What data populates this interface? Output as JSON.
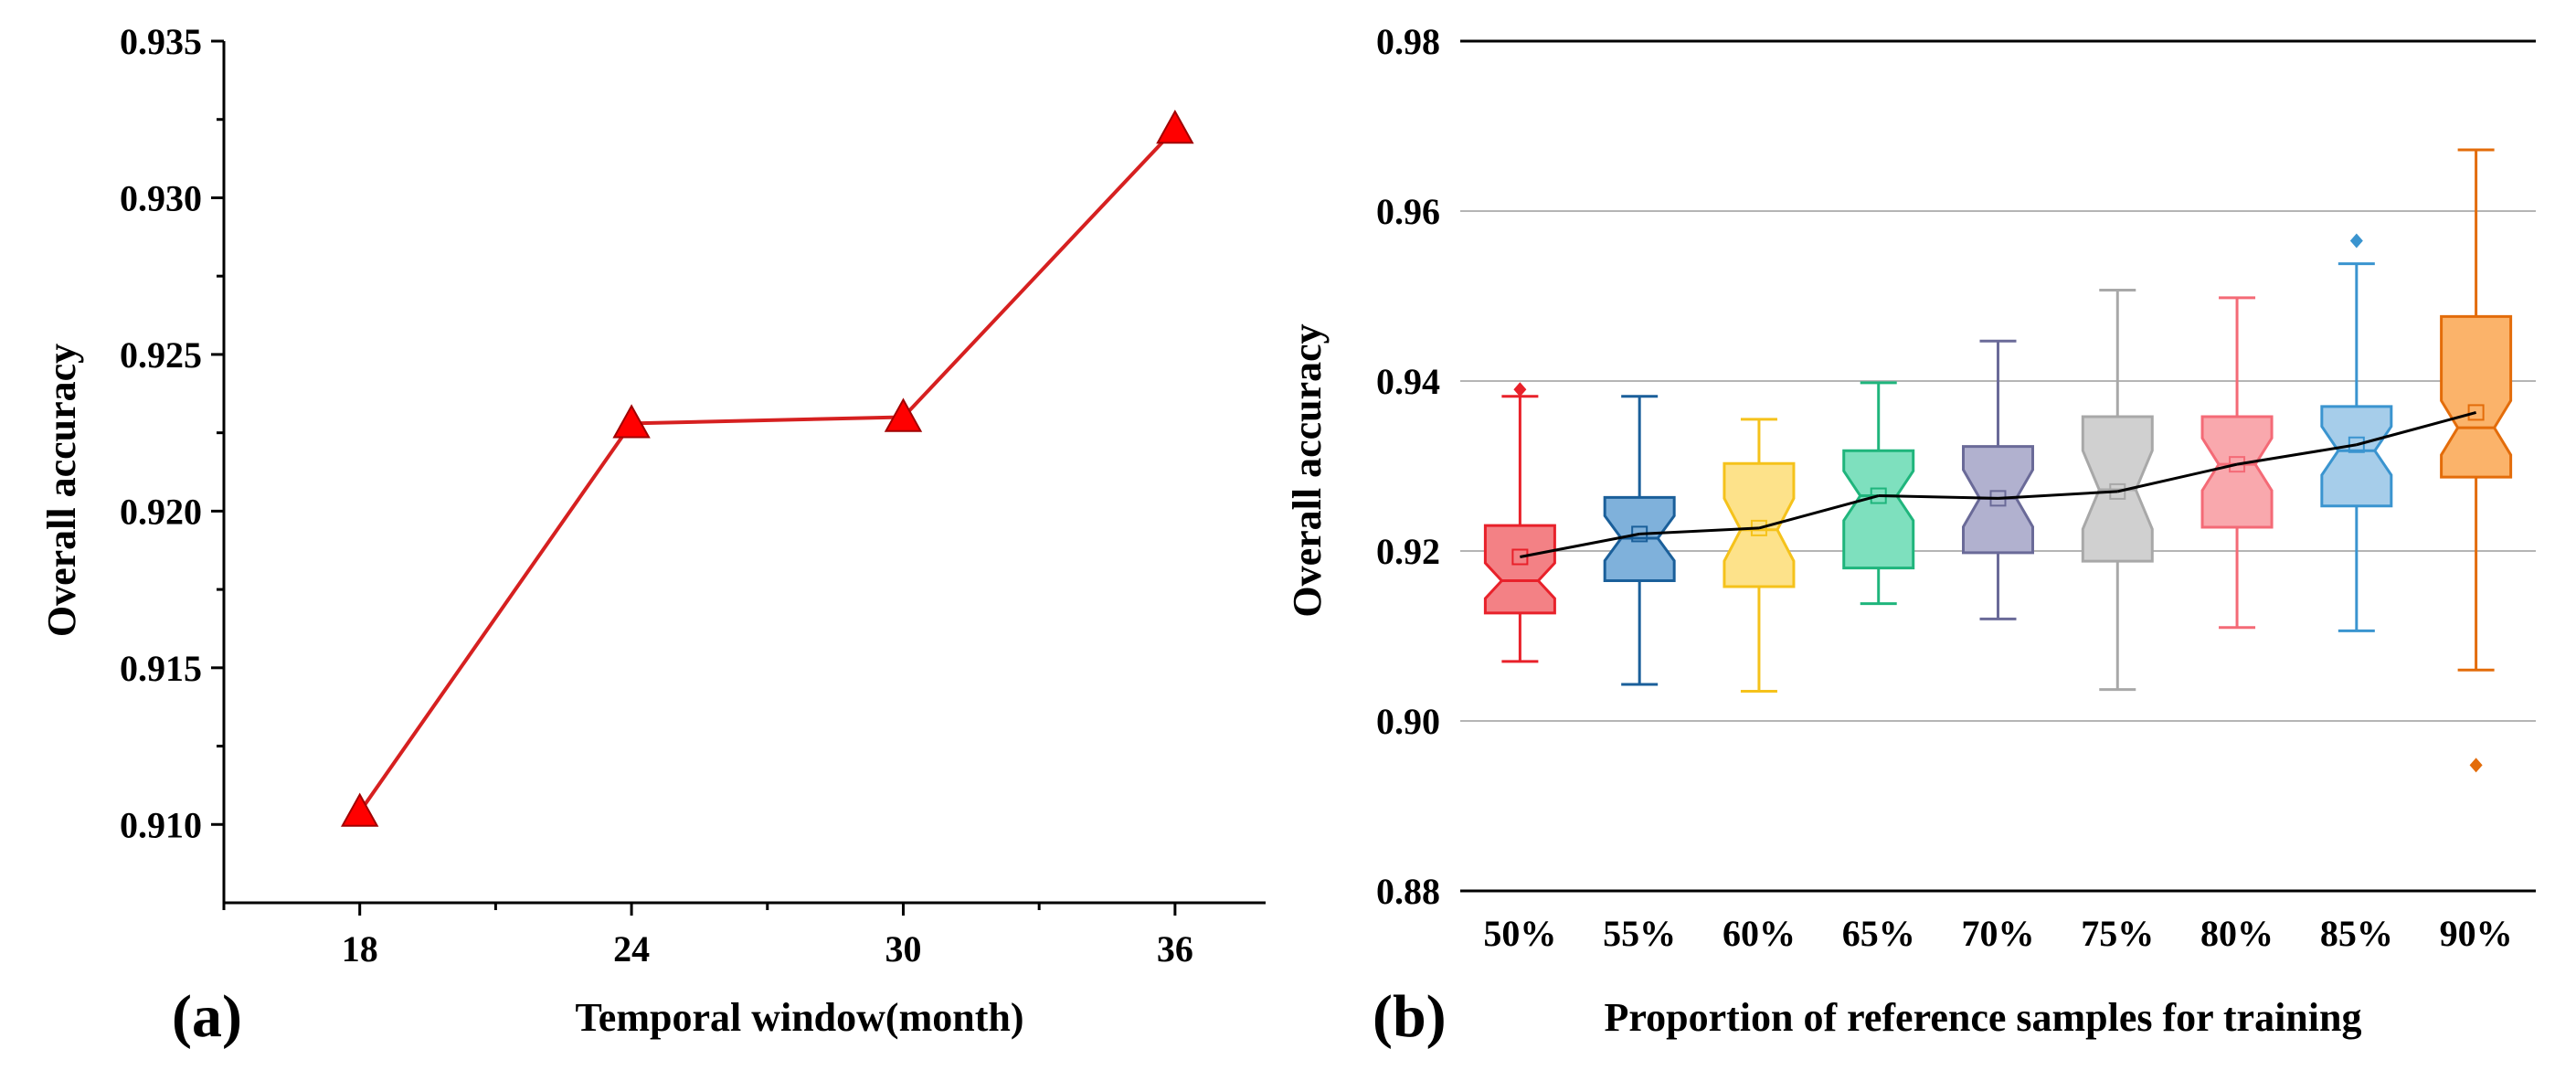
{
  "chart_data": [
    {
      "type": "line",
      "panel_label": "(a)",
      "xlabel": "Temporal window(month)",
      "ylabel": "Overall accuracy",
      "x": [
        18,
        24,
        30,
        36
      ],
      "x_tick_labels": [
        "18",
        "24",
        "30",
        "36"
      ],
      "y": [
        0.9104,
        0.9228,
        0.923,
        0.9322
      ],
      "y_ticks": [
        0.91,
        0.915,
        0.92,
        0.925,
        0.93,
        0.935
      ],
      "y_tick_labels": [
        "0.910",
        "0.915",
        "0.920",
        "0.925",
        "0.930",
        "0.935"
      ],
      "xlim": [
        15,
        38
      ],
      "ylim": [
        0.9075,
        0.935
      ],
      "marker": "triangle",
      "color": "#d62020",
      "marker_color": "#ff0000"
    },
    {
      "type": "box",
      "panel_label": "(b)",
      "xlabel": "Proportion of reference samples for training",
      "ylabel": "Overall accuracy",
      "categories": [
        "50%",
        "55%",
        "60%",
        "65%",
        "70%",
        "75%",
        "80%",
        "85%",
        "90%"
      ],
      "ylim": [
        0.88,
        0.98
      ],
      "y_ticks": [
        0.88,
        0.9,
        0.92,
        0.94,
        0.96,
        0.98
      ],
      "y_tick_labels": [
        "0.88",
        "0.90",
        "0.92",
        "0.94",
        "0.96",
        "0.98"
      ],
      "grid": true,
      "notched": true,
      "boxes": [
        {
          "whisker_low": 0.907,
          "q1": 0.9127,
          "median": 0.9165,
          "q3": 0.923,
          "whisker_high": 0.9382,
          "mean": 0.9193,
          "outliers": [
            0.939
          ],
          "color": "#e8212a",
          "fill": "#f38185"
        },
        {
          "whisker_low": 0.9043,
          "q1": 0.9165,
          "median": 0.9215,
          "q3": 0.9263,
          "whisker_high": 0.9382,
          "mean": 0.922,
          "outliers": [],
          "color": "#1a5f9a",
          "fill": "#7fb1db"
        },
        {
          "whisker_low": 0.9035,
          "q1": 0.9158,
          "median": 0.9225,
          "q3": 0.9303,
          "whisker_high": 0.9355,
          "mean": 0.9227,
          "outliers": [],
          "color": "#f5c21b",
          "fill": "#fde28a"
        },
        {
          "whisker_low": 0.9138,
          "q1": 0.918,
          "median": 0.9265,
          "q3": 0.9318,
          "whisker_high": 0.9398,
          "mean": 0.9265,
          "outliers": [],
          "color": "#1fb57c",
          "fill": "#7ee0be"
        },
        {
          "whisker_low": 0.912,
          "q1": 0.9198,
          "median": 0.9262,
          "q3": 0.9323,
          "whisker_high": 0.9447,
          "mean": 0.9262,
          "outliers": [],
          "color": "#6a6a98",
          "fill": "#b1b1cf"
        },
        {
          "whisker_low": 0.9037,
          "q1": 0.9188,
          "median": 0.9272,
          "q3": 0.9358,
          "whisker_high": 0.9507,
          "mean": 0.927,
          "outliers": [],
          "color": "#a8a8a8",
          "fill": "#d0d0d0"
        },
        {
          "whisker_low": 0.911,
          "q1": 0.9228,
          "median": 0.9302,
          "q3": 0.9358,
          "whisker_high": 0.9498,
          "mean": 0.9302,
          "outliers": [],
          "color": "#f46a76",
          "fill": "#f9a8ad"
        },
        {
          "whisker_low": 0.9106,
          "q1": 0.9253,
          "median": 0.9318,
          "q3": 0.937,
          "whisker_high": 0.9538,
          "mean": 0.9325,
          "outliers": [
            0.9565
          ],
          "color": "#3a94cf",
          "fill": "#a6cdea"
        },
        {
          "whisker_low": 0.906,
          "q1": 0.9287,
          "median": 0.9345,
          "q3": 0.9476,
          "whisker_high": 0.9672,
          "mean": 0.9363,
          "outliers": [
            0.8948
          ],
          "color": "#e36c0a",
          "fill": "#fbb36a"
        }
      ],
      "mean_line_color": "#000000"
    }
  ]
}
